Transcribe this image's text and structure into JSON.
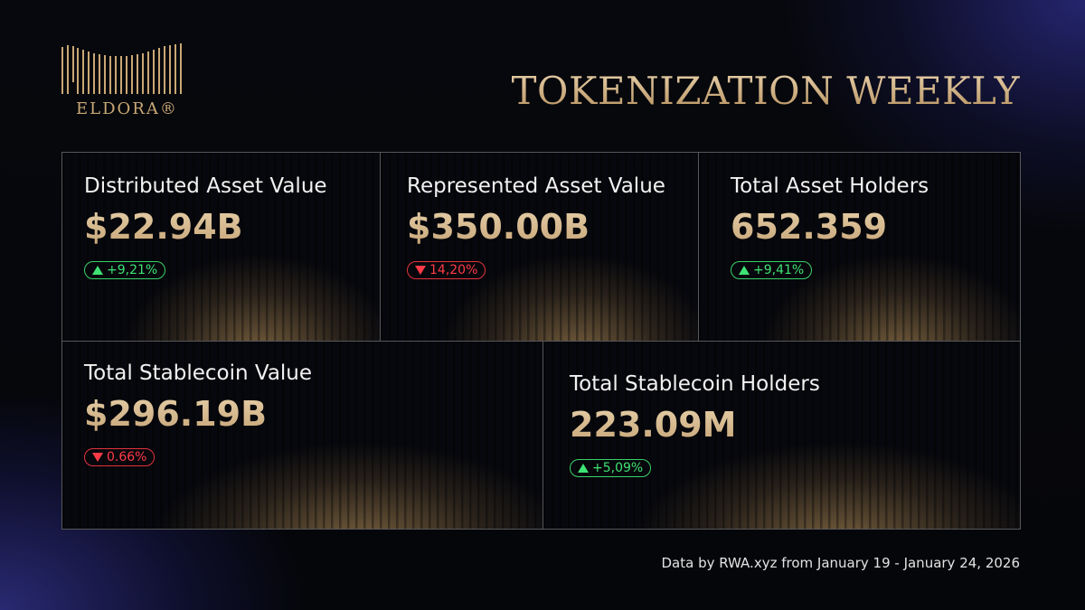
{
  "brand": {
    "logo_text": "ELDORA®",
    "logo_color": "#c9a874"
  },
  "header": {
    "title": "TOKENIZATION WEEKLY"
  },
  "colors": {
    "gold": "#c7a578",
    "positive": "#3ee374",
    "negative": "#ff3b47",
    "accent_glow": "#3c3cc8"
  },
  "metrics": [
    {
      "label": "Distributed Asset Value",
      "value": "$22.94B",
      "change": "+9,21%",
      "direction": "up"
    },
    {
      "label": "Represented Asset Value",
      "value": "$350.00B",
      "change": "14,20%",
      "direction": "down"
    },
    {
      "label": "Total Asset Holders",
      "value": "652.359",
      "change": "+9,41%",
      "direction": "up"
    },
    {
      "label": "Total Stablecoin Value",
      "value": "$296.19B",
      "change": "0.66%",
      "direction": "down"
    },
    {
      "label": "Total Stablecoin Holders",
      "value": "223.09M",
      "change": "+5,09%",
      "direction": "up"
    }
  ],
  "footer": {
    "source": "Data by RWA.xyz from January 19 - January 24, 2026"
  }
}
